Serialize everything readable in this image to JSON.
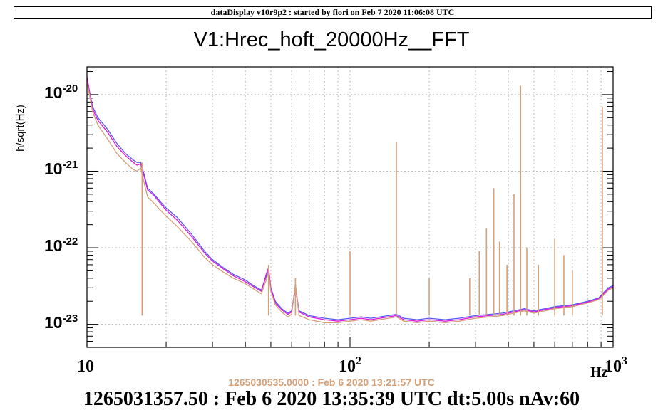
{
  "header": {
    "text": "dataDisplay v10r9p2 : started by fiori on Feb  7 2020 11:06:08 UTC"
  },
  "chart_data": {
    "type": "line",
    "title": "V1:Hrec_hoft_20000Hz__FFT",
    "ylabel": "h/sqrt(Hz)",
    "xlabel": "",
    "x_unit_label": "Hz",
    "xscale": "log",
    "yscale": "log",
    "xlim": [
      10,
      1000
    ],
    "ylim": [
      5e-24,
      2.3e-20
    ],
    "grid": true,
    "x_ticks": [
      {
        "base": "10",
        "exp": "",
        "value": 10
      },
      {
        "base": "10",
        "exp": "2",
        "value": 100
      },
      {
        "base": "10",
        "exp": "3",
        "value": 1000
      }
    ],
    "y_ticks": [
      {
        "base": "10",
        "exp": "-20",
        "value": 1e-20
      },
      {
        "base": "10",
        "exp": "-21",
        "value": 1e-21
      },
      {
        "base": "10",
        "exp": "-22",
        "value": 1e-22
      },
      {
        "base": "10",
        "exp": "-23",
        "value": 1e-23
      }
    ],
    "series": [
      {
        "color": "#5a5af0",
        "points": [
          [
            10,
            1.6e-20
          ],
          [
            10.5,
            7e-21
          ],
          [
            11,
            5e-21
          ],
          [
            12,
            3.5e-21
          ],
          [
            13,
            2.3e-21
          ],
          [
            14,
            1.7e-21
          ],
          [
            15,
            1.4e-21
          ],
          [
            15.5,
            1.3e-21
          ],
          [
            16,
            1.3e-21
          ],
          [
            16.5,
            9e-22
          ],
          [
            17,
            6e-22
          ],
          [
            18,
            5e-22
          ],
          [
            19,
            4e-22
          ],
          [
            20,
            3.3e-22
          ],
          [
            22,
            2.5e-22
          ],
          [
            25,
            1.5e-22
          ],
          [
            28,
            9e-23
          ],
          [
            30,
            7e-23
          ],
          [
            33,
            5.5e-23
          ],
          [
            36,
            4.5e-23
          ],
          [
            40,
            3.8e-23
          ],
          [
            43,
            3.2e-23
          ],
          [
            46,
            2.8e-23
          ],
          [
            48,
            4.2e-23
          ],
          [
            49,
            5e-23
          ],
          [
            50,
            3e-23
          ],
          [
            52,
            2e-23
          ],
          [
            55,
            1.6e-23
          ],
          [
            58,
            1.4e-23
          ],
          [
            60,
            1.5e-23
          ],
          [
            62,
            3e-23
          ],
          [
            64,
            1.5e-23
          ],
          [
            70,
            1.3e-23
          ],
          [
            80,
            1.2e-23
          ],
          [
            90,
            1.15e-23
          ],
          [
            100,
            1.2e-23
          ],
          [
            110,
            1.25e-23
          ],
          [
            120,
            1.2e-23
          ],
          [
            140,
            1.3e-23
          ],
          [
            150,
            1.35e-23
          ],
          [
            160,
            1.2e-23
          ],
          [
            180,
            1.15e-23
          ],
          [
            200,
            1.2e-23
          ],
          [
            230,
            1.15e-23
          ],
          [
            260,
            1.2e-23
          ],
          [
            300,
            1.3e-23
          ],
          [
            340,
            1.35e-23
          ],
          [
            380,
            1.4e-23
          ],
          [
            420,
            1.5e-23
          ],
          [
            460,
            1.6e-23
          ],
          [
            500,
            1.5e-23
          ],
          [
            550,
            1.6e-23
          ],
          [
            600,
            1.7e-23
          ],
          [
            700,
            1.8e-23
          ],
          [
            800,
            2e-23
          ],
          [
            880,
            2.2e-23
          ],
          [
            920,
            2.6e-23
          ],
          [
            960,
            3e-23
          ],
          [
            1000,
            3.2e-23
          ]
        ]
      },
      {
        "color": "#d81bd8",
        "points": [
          [
            10,
            1.7e-20
          ],
          [
            10.5,
            6.5e-21
          ],
          [
            11,
            4.6e-21
          ],
          [
            12,
            3.2e-21
          ],
          [
            13,
            2.1e-21
          ],
          [
            14,
            1.6e-21
          ],
          [
            15,
            1.3e-21
          ],
          [
            15.5,
            1.2e-21
          ],
          [
            16,
            1.25e-21
          ],
          [
            16.5,
            8.5e-22
          ],
          [
            17,
            5.7e-22
          ],
          [
            18,
            4.8e-22
          ],
          [
            19,
            3.8e-22
          ],
          [
            20,
            3.1e-22
          ],
          [
            22,
            2.3e-22
          ],
          [
            25,
            1.4e-22
          ],
          [
            28,
            8.5e-23
          ],
          [
            30,
            6.7e-23
          ],
          [
            33,
            5.3e-23
          ],
          [
            36,
            4.3e-23
          ],
          [
            40,
            3.6e-23
          ],
          [
            43,
            3.1e-23
          ],
          [
            46,
            2.7e-23
          ],
          [
            48,
            4.5e-23
          ],
          [
            49,
            5.5e-23
          ],
          [
            50,
            2.9e-23
          ],
          [
            52,
            1.9e-23
          ],
          [
            55,
            1.55e-23
          ],
          [
            58,
            1.35e-23
          ],
          [
            60,
            1.45e-23
          ],
          [
            62,
            3.2e-23
          ],
          [
            64,
            1.45e-23
          ],
          [
            70,
            1.25e-23
          ],
          [
            80,
            1.15e-23
          ],
          [
            90,
            1.1e-23
          ],
          [
            100,
            1.15e-23
          ],
          [
            110,
            1.2e-23
          ],
          [
            120,
            1.15e-23
          ],
          [
            140,
            1.25e-23
          ],
          [
            150,
            1.3e-23
          ],
          [
            160,
            1.15e-23
          ],
          [
            180,
            1.1e-23
          ],
          [
            200,
            1.15e-23
          ],
          [
            230,
            1.1e-23
          ],
          [
            260,
            1.15e-23
          ],
          [
            300,
            1.25e-23
          ],
          [
            340,
            1.3e-23
          ],
          [
            380,
            1.35e-23
          ],
          [
            420,
            1.45e-23
          ],
          [
            460,
            1.55e-23
          ],
          [
            500,
            1.45e-23
          ],
          [
            550,
            1.55e-23
          ],
          [
            600,
            1.65e-23
          ],
          [
            700,
            1.75e-23
          ],
          [
            800,
            1.95e-23
          ],
          [
            880,
            2.15e-23
          ],
          [
            920,
            2.5e-23
          ],
          [
            960,
            2.9e-23
          ],
          [
            1000,
            3.1e-23
          ]
        ]
      },
      {
        "color": "#d4a07a",
        "points": [
          [
            10,
            1.5e-20
          ],
          [
            10.5,
            6e-21
          ],
          [
            11,
            4e-21
          ],
          [
            12,
            2.6e-21
          ],
          [
            13,
            1.7e-21
          ],
          [
            14,
            1.3e-21
          ],
          [
            15,
            1.05e-21
          ],
          [
            15.5,
            1e-21
          ],
          [
            16,
            1.1e-21
          ],
          [
            16.5,
            7e-22
          ],
          [
            17,
            4.6e-22
          ],
          [
            18,
            3.8e-22
          ],
          [
            19,
            3.1e-22
          ],
          [
            20,
            2.6e-22
          ],
          [
            22,
            1.9e-22
          ],
          [
            25,
            1.2e-22
          ],
          [
            28,
            7.5e-23
          ],
          [
            30,
            6e-23
          ],
          [
            33,
            4.8e-23
          ],
          [
            36,
            4e-23
          ],
          [
            40,
            3.4e-23
          ],
          [
            43,
            2.9e-23
          ],
          [
            46,
            2.5e-23
          ],
          [
            48,
            3.8e-23
          ],
          [
            49,
            4.8e-23
          ],
          [
            50,
            2.7e-23
          ],
          [
            52,
            1.8e-23
          ],
          [
            55,
            1.45e-23
          ],
          [
            58,
            1.25e-23
          ],
          [
            60,
            1.35e-23
          ],
          [
            62,
            3.4e-23
          ],
          [
            64,
            1.3e-23
          ],
          [
            70,
            1.15e-23
          ],
          [
            80,
            1.05e-23
          ],
          [
            90,
            1.05e-23
          ],
          [
            100,
            1.1e-23
          ],
          [
            110,
            1.15e-23
          ],
          [
            120,
            1.1e-23
          ],
          [
            140,
            1.2e-23
          ],
          [
            150,
            1.25e-23
          ],
          [
            160,
            1.1e-23
          ],
          [
            180,
            1.05e-23
          ],
          [
            200,
            1.1e-23
          ],
          [
            230,
            1.05e-23
          ],
          [
            260,
            1.1e-23
          ],
          [
            300,
            1.2e-23
          ],
          [
            340,
            1.25e-23
          ],
          [
            380,
            1.3e-23
          ],
          [
            420,
            1.4e-23
          ],
          [
            460,
            1.5e-23
          ],
          [
            500,
            1.4e-23
          ],
          [
            550,
            1.5e-23
          ],
          [
            600,
            1.6e-23
          ],
          [
            700,
            1.7e-23
          ],
          [
            800,
            1.9e-23
          ],
          [
            880,
            2.1e-23
          ],
          [
            920,
            2.4e-23
          ],
          [
            960,
            2.8e-23
          ],
          [
            1000,
            3e-23
          ]
        ]
      }
    ],
    "spikes": [
      {
        "x": 16.2,
        "y": 1.3e-21
      },
      {
        "x": 49,
        "y": 6e-23
      },
      {
        "x": 62,
        "y": 4e-23
      },
      {
        "x": 100,
        "y": 9e-23
      },
      {
        "x": 150,
        "y": 2.4e-21
      },
      {
        "x": 200,
        "y": 4e-23
      },
      {
        "x": 285,
        "y": 4e-23
      },
      {
        "x": 310,
        "y": 9e-23
      },
      {
        "x": 330,
        "y": 1.8e-22
      },
      {
        "x": 352,
        "y": 6e-22
      },
      {
        "x": 370,
        "y": 1.2e-22
      },
      {
        "x": 395,
        "y": 6e-23
      },
      {
        "x": 420,
        "y": 5e-22
      },
      {
        "x": 445,
        "y": 1.3e-20
      },
      {
        "x": 470,
        "y": 1e-22
      },
      {
        "x": 520,
        "y": 6e-23
      },
      {
        "x": 600,
        "y": 1.3e-22
      },
      {
        "x": 650,
        "y": 8e-23
      },
      {
        "x": 700,
        "y": 5e-23
      },
      {
        "x": 910,
        "y": 7e-21
      }
    ],
    "spike_color": "#d4a07a",
    "frame_color": "#000000",
    "grid_color": "#bbbbbb"
  },
  "stamps": {
    "reference": "1265030535.0000 : Feb  6 2020 13:21:57 UTC",
    "current": "1265031357.50 : Feb  6 2020 13:35:39 UTC dt:5.00s nAv:60"
  }
}
